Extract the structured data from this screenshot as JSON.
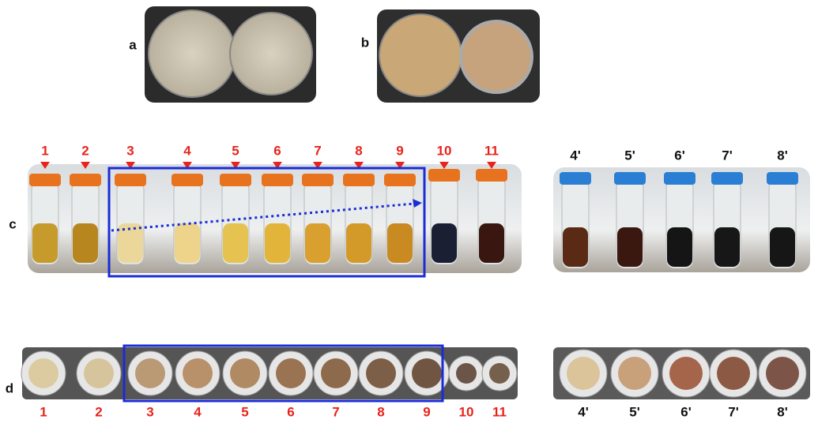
{
  "panels": {
    "a": "a",
    "b": "b",
    "c": "c",
    "d": "d"
  },
  "tubes": {
    "left": [
      "1",
      "2",
      "3",
      "4",
      "5",
      "6",
      "7",
      "8",
      "9",
      "10",
      "11"
    ],
    "right": [
      "4'",
      "5'",
      "6'",
      "7'",
      "8'"
    ]
  },
  "dishes": {
    "left": [
      "1",
      "2",
      "3",
      "4",
      "5",
      "6",
      "7",
      "8",
      "9",
      "10",
      "11"
    ],
    "right": [
      "4'",
      "5'",
      "6'",
      "7'",
      "8'"
    ]
  }
}
